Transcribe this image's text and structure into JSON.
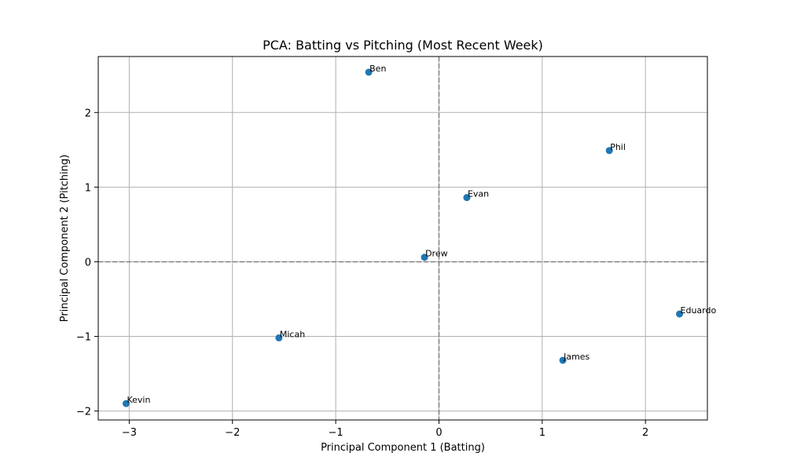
{
  "chart_data": {
    "type": "scatter",
    "title": "PCA: Batting vs Pitching (Most Recent Week)",
    "xlabel": "Principal Component 1 (Batting)",
    "ylabel": "Principal Component 2 (Pitching)",
    "xlim": [
      -3.3,
      2.6
    ],
    "ylim": [
      -2.12,
      2.75
    ],
    "xticks": [
      -3,
      -2,
      -1,
      0,
      1,
      2
    ],
    "yticks": [
      -2,
      -1,
      0,
      1,
      2
    ],
    "xtick_labels": [
      "−3",
      "−2",
      "−1",
      "0",
      "1",
      "2"
    ],
    "ytick_labels": [
      "−2",
      "−1",
      "0",
      "1",
      "2"
    ],
    "grid": true,
    "reference_lines": {
      "x": 0,
      "y": 0,
      "style": "dashed"
    },
    "marker_color": "#1f77b4",
    "points": [
      {
        "label": "Ben",
        "x": -0.68,
        "y": 2.54
      },
      {
        "label": "Phil",
        "x": 1.65,
        "y": 1.49
      },
      {
        "label": "Evan",
        "x": 0.27,
        "y": 0.86
      },
      {
        "label": "Drew",
        "x": -0.14,
        "y": 0.06
      },
      {
        "label": "Eduardo",
        "x": 2.33,
        "y": -0.7
      },
      {
        "label": "Micah",
        "x": -1.55,
        "y": -1.02
      },
      {
        "label": "James",
        "x": 1.2,
        "y": -1.32
      },
      {
        "label": "Kevin",
        "x": -3.03,
        "y": -1.9
      }
    ]
  }
}
